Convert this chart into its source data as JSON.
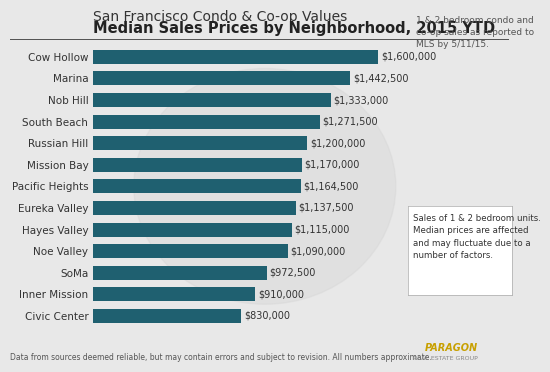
{
  "title_line1": "San Francisco Condo & Co-op Values",
  "title_line2": "Median Sales Prices by Neighborhood, 2015 YTD",
  "subtitle_right": "1 & 2 bedroom condo and\nco-op sales as reported to\nMLS by 5/11/15.",
  "annotation_box": "Sales of 1 & 2 bedroom units.\nMedian prices are affected\nand may fluctuate due to a\nnumber of factors.",
  "footer": "Data from sources deemed reliable, but may contain errors and subject to revision. All numbers approximate.",
  "neighborhoods": [
    "Cow Hollow",
    "Marina",
    "Nob Hill",
    "South Beach",
    "Russian Hill",
    "Mission Bay",
    "Pacific Heights",
    "Eureka Valley",
    "Hayes Valley",
    "Noe Valley",
    "SoMa",
    "Inner Mission",
    "Civic Center"
  ],
  "values": [
    1600000,
    1442500,
    1333000,
    1271500,
    1200000,
    1170000,
    1164500,
    1137500,
    1115000,
    1090000,
    972500,
    910000,
    830000
  ],
  "value_labels": [
    "$1,600,000",
    "$1,442,500",
    "$1,333,000",
    "$1,271,500",
    "$1,200,000",
    "$1,170,000",
    "$1,164,500",
    "$1,137,500",
    "$1,115,000",
    "$1,090,000",
    "$972,500",
    "$910,000",
    "$830,000"
  ],
  "bar_color": "#1f6070",
  "bg_color": "#e8e8e8",
  "title_color": "#333333",
  "subtitle_color": "#555555",
  "footer_color": "#555555",
  "label_color": "#333333",
  "xlim": [
    0,
    1750000
  ]
}
